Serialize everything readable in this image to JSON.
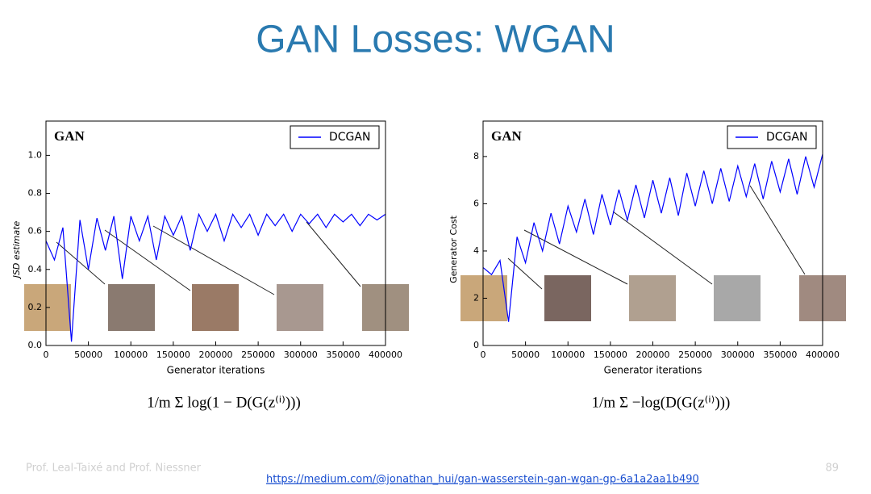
{
  "title": "GAN Losses: WGAN",
  "footer": {
    "authors": "Prof. Leal-Taixé and Prof. Niessner",
    "link": "https://medium.com/@jonathan_hui/gan-wasserstein-gan-wgan-gp-6a1a2aa1b490",
    "page": "89"
  },
  "chart_data": [
    {
      "type": "line",
      "annotation": "GAN",
      "xlabel": "Generator iterations",
      "ylabel": "JSD estimate",
      "formula": "1/m Σ log(1 − D(G(z⁽ⁱ⁾)))",
      "x": [
        0,
        10000,
        20000,
        30000,
        40000,
        50000,
        60000,
        70000,
        80000,
        90000,
        100000,
        110000,
        120000,
        130000,
        140000,
        150000,
        160000,
        170000,
        180000,
        190000,
        200000,
        210000,
        220000,
        230000,
        240000,
        250000,
        260000,
        270000,
        280000,
        290000,
        300000,
        310000,
        320000,
        330000,
        340000,
        350000,
        360000,
        370000,
        380000,
        390000,
        400000
      ],
      "series": [
        {
          "name": "DCGAN",
          "color": "#0000ff",
          "values": [
            0.55,
            0.45,
            0.62,
            0.02,
            0.66,
            0.4,
            0.67,
            0.5,
            0.68,
            0.35,
            0.68,
            0.55,
            0.68,
            0.45,
            0.68,
            0.58,
            0.68,
            0.5,
            0.69,
            0.6,
            0.69,
            0.55,
            0.69,
            0.62,
            0.69,
            0.58,
            0.69,
            0.63,
            0.69,
            0.6,
            0.69,
            0.64,
            0.69,
            0.62,
            0.69,
            0.65,
            0.69,
            0.63,
            0.69,
            0.66,
            0.69
          ]
        }
      ],
      "xlim": [
        0,
        400000
      ],
      "xticks": [
        0,
        50000,
        100000,
        150000,
        200000,
        250000,
        300000,
        350000,
        400000
      ],
      "ylim": [
        0,
        1.18
      ],
      "yticks": [
        {
          "value": 0,
          "label": "0.0"
        },
        0.2,
        0.4,
        0.6,
        0.8,
        {
          "value": 1,
          "label": "1.0"
        }
      ],
      "legend": "upper right"
    },
    {
      "type": "line",
      "annotation": "GAN",
      "xlabel": "Generator iterations",
      "ylabel": "Generator Cost",
      "formula": "1/m Σ −log(D(G(z⁽ⁱ⁾)))",
      "x": [
        0,
        10000,
        20000,
        30000,
        40000,
        50000,
        60000,
        70000,
        80000,
        90000,
        100000,
        110000,
        120000,
        130000,
        140000,
        150000,
        160000,
        170000,
        180000,
        190000,
        200000,
        210000,
        220000,
        230000,
        240000,
        250000,
        260000,
        270000,
        280000,
        290000,
        300000,
        310000,
        320000,
        330000,
        340000,
        350000,
        360000,
        370000,
        380000,
        390000,
        400000
      ],
      "series": [
        {
          "name": "DCGAN",
          "color": "#0000ff",
          "values": [
            3.3,
            3.0,
            3.6,
            1.0,
            4.6,
            3.5,
            5.2,
            4.0,
            5.6,
            4.3,
            5.9,
            4.8,
            6.2,
            4.7,
            6.4,
            5.1,
            6.6,
            5.3,
            6.8,
            5.4,
            7.0,
            5.6,
            7.1,
            5.5,
            7.3,
            5.9,
            7.4,
            6.0,
            7.5,
            6.1,
            7.6,
            6.3,
            7.7,
            6.2,
            7.8,
            6.5,
            7.9,
            6.4,
            8.0,
            6.7,
            8.1
          ]
        }
      ],
      "xlim": [
        0,
        400000
      ],
      "xticks": [
        0,
        50000,
        100000,
        150000,
        200000,
        250000,
        300000,
        350000,
        400000
      ],
      "ylim": [
        0,
        9.5
      ],
      "yticks": [
        0,
        2,
        4,
        6,
        8
      ],
      "legend": "upper right"
    }
  ]
}
